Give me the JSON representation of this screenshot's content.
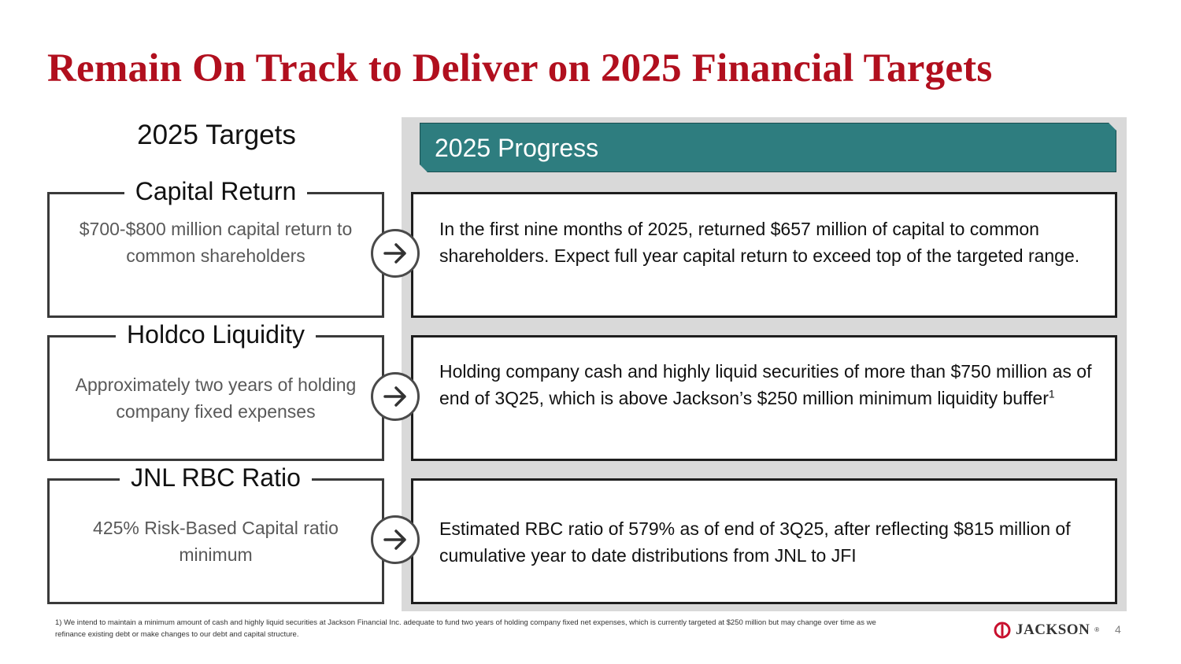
{
  "title": "Remain On Track to Deliver on 2025 Financial Targets",
  "targets_header": "2025 Targets",
  "progress_header": "2025 Progress",
  "targets": [
    {
      "title": "Capital Return",
      "body": "$700-$800 million capital return to common shareholders"
    },
    {
      "title": "Holdco Liquidity",
      "body": "Approximately two years of holding company fixed expenses"
    },
    {
      "title": "JNL RBC Ratio",
      "body": "425% Risk-Based Capital ratio minimum"
    }
  ],
  "progress": [
    {
      "body": "In the first nine months of 2025, returned $657 million of capital to common shareholders. Expect full year capital return to exceed top of the targeted range."
    },
    {
      "body": "Holding company cash and highly liquid securities of more than $750 million as of end of 3Q25, which is above Jackson’s $250 million minimum liquidity buffer",
      "superscript": "1"
    },
    {
      "body": "Estimated RBC ratio of 579% as of end of 3Q25, after reflecting $815 million of cumulative year to date distributions from JNL to JFI"
    }
  ],
  "footnote": "1) We intend to maintain a minimum amount of cash and highly liquid securities at Jackson Financial Inc. adequate to fund two years of holding company fixed net expenses, which is currently targeted at $250 million but may change over time as we refinance existing debt or make changes to our debt and capital structure.",
  "logo": {
    "text": "JACKSON",
    "mark": "®"
  },
  "page_number": "4",
  "colors": {
    "title": "#b10f1e",
    "banner": "#2e7d7f",
    "panel": "#d9d9d9"
  },
  "icons": {
    "arrow": "arrow-right-circle-icon",
    "logo": "jackson-logo-icon"
  }
}
